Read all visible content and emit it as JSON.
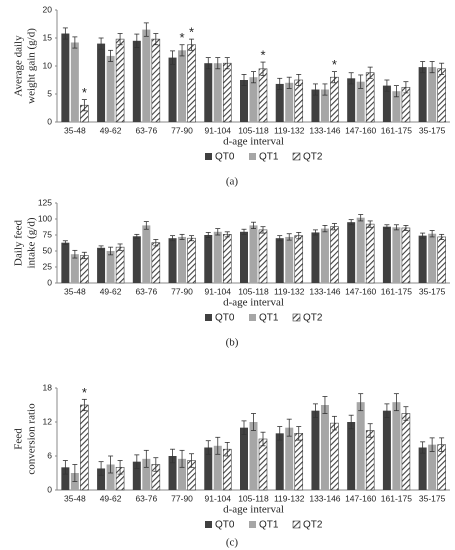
{
  "chart_data": [
    {
      "type": "bar",
      "y_label": [
        "Average daily",
        "weight gain (g/d)"
      ],
      "x_label": "d-age interval",
      "panel_label": "(a)",
      "categories": [
        "35-48",
        "49-62",
        "63-76",
        "77-90",
        "91-104",
        "105-118",
        "119-132",
        "133-146",
        "147-160",
        "161-175",
        "35-175"
      ],
      "ylim": [
        0,
        20
      ],
      "yticks": [
        0,
        5,
        10,
        15,
        20
      ],
      "series": [
        {
          "name": "QT0",
          "color": "#404040",
          "values": [
            15.8,
            14.0,
            14.5,
            11.5,
            10.5,
            7.5,
            6.8,
            5.8,
            7.8,
            6.5,
            9.8
          ],
          "errors": [
            1.0,
            1.0,
            1.2,
            1.2,
            1.0,
            1.0,
            1.0,
            1.0,
            1.0,
            1.0,
            1.0
          ],
          "significance": [
            null,
            null,
            null,
            null,
            null,
            null,
            null,
            null,
            null,
            null,
            null
          ]
        },
        {
          "name": "QT1",
          "color": "#a6a6a6",
          "values": [
            14.2,
            11.8,
            16.5,
            12.8,
            10.5,
            8.0,
            7.0,
            5.8,
            7.2,
            5.5,
            9.8
          ],
          "errors": [
            1.0,
            1.0,
            1.2,
            1.0,
            1.0,
            1.0,
            1.0,
            1.0,
            1.2,
            1.0,
            1.0
          ],
          "significance": [
            null,
            null,
            null,
            "*",
            null,
            null,
            null,
            null,
            null,
            null,
            null
          ]
        },
        {
          "name": "QT2",
          "color": "#404040",
          "pattern": "hatch",
          "values": [
            3.0,
            14.8,
            14.8,
            13.8,
            10.5,
            9.5,
            7.5,
            8.0,
            8.8,
            6.2,
            9.5
          ],
          "errors": [
            1.0,
            1.0,
            1.0,
            1.0,
            1.0,
            1.2,
            1.0,
            1.0,
            1.0,
            1.0,
            1.0
          ],
          "significance": [
            "*",
            null,
            null,
            "*",
            null,
            "*",
            null,
            "*",
            null,
            null,
            null
          ]
        }
      ]
    },
    {
      "type": "bar",
      "y_label": [
        "Daily feed",
        "intake (g/d)"
      ],
      "x_label": "d-age interval",
      "panel_label": "(b)",
      "categories": [
        "35-48",
        "49-62",
        "63-76",
        "77-90",
        "91-104",
        "105-118",
        "119-132",
        "133-146",
        "147-160",
        "161-175",
        "35-175"
      ],
      "ylim": [
        0,
        125
      ],
      "yticks": [
        0,
        25,
        50,
        75,
        100,
        125
      ],
      "series": [
        {
          "name": "QT0",
          "color": "#404040",
          "values": [
            63,
            55,
            73,
            70,
            75,
            80,
            70,
            79,
            95,
            88,
            74
          ],
          "errors": [
            3,
            3,
            3,
            4,
            4,
            4,
            4,
            4,
            4,
            3,
            4
          ],
          "significance": [
            null,
            null,
            null,
            null,
            null,
            null,
            null,
            null,
            null,
            null,
            null
          ]
        },
        {
          "name": "QT1",
          "color": "#a6a6a6",
          "values": [
            45,
            50,
            90,
            72,
            80,
            90,
            72,
            85,
            102,
            87,
            77
          ],
          "errors": [
            6,
            6,
            6,
            4,
            5,
            5,
            5,
            5,
            5,
            4,
            5
          ],
          "significance": [
            null,
            null,
            null,
            null,
            null,
            null,
            null,
            null,
            null,
            null,
            null
          ]
        },
        {
          "name": "QT2",
          "color": "#404040",
          "pattern": "hatch",
          "values": [
            43,
            56,
            63,
            70,
            76,
            83,
            74,
            88,
            92,
            86,
            72
          ],
          "errors": [
            5,
            5,
            5,
            4,
            4,
            5,
            5,
            5,
            5,
            4,
            4
          ],
          "significance": [
            null,
            null,
            null,
            null,
            null,
            null,
            null,
            null,
            null,
            null,
            null
          ]
        }
      ]
    },
    {
      "type": "bar",
      "y_label": [
        "Feed",
        "conversion ratio"
      ],
      "x_label": "d-age interval",
      "panel_label": "(c)",
      "categories": [
        "35-48",
        "49-62",
        "63-76",
        "77-90",
        "91-104",
        "105-118",
        "119-132",
        "133-146",
        "147-160",
        "161-175",
        "35-175"
      ],
      "ylim": [
        0,
        18
      ],
      "yticks": [
        0,
        6,
        12,
        18
      ],
      "series": [
        {
          "name": "QT0",
          "color": "#404040",
          "values": [
            4.0,
            3.8,
            5.0,
            6.0,
            7.5,
            11.0,
            10.0,
            14.0,
            12.0,
            14.0,
            7.5
          ],
          "errors": [
            1.2,
            1.2,
            1.2,
            1.2,
            1.2,
            1.2,
            1.2,
            1.2,
            1.2,
            1.2,
            1.0
          ],
          "significance": [
            null,
            null,
            null,
            null,
            null,
            null,
            null,
            null,
            null,
            null,
            null
          ]
        },
        {
          "name": "QT1",
          "color": "#a6a6a6",
          "values": [
            3.0,
            4.5,
            5.5,
            5.5,
            7.8,
            12.0,
            11.0,
            15.0,
            15.5,
            15.5,
            8.0
          ],
          "errors": [
            1.5,
            1.5,
            1.5,
            1.5,
            1.5,
            1.5,
            1.5,
            1.5,
            1.5,
            1.5,
            1.2
          ],
          "significance": [
            null,
            null,
            null,
            null,
            null,
            null,
            null,
            null,
            null,
            null,
            null
          ]
        },
        {
          "name": "QT2",
          "color": "#404040",
          "pattern": "hatch",
          "values": [
            15.0,
            4.0,
            4.5,
            5.2,
            7.2,
            9.0,
            10.0,
            11.8,
            10.5,
            13.5,
            8.0
          ],
          "errors": [
            1.0,
            1.2,
            1.2,
            1.2,
            1.2,
            1.2,
            1.2,
            1.2,
            1.2,
            1.2,
            1.2
          ],
          "significance": [
            "*",
            null,
            null,
            null,
            null,
            null,
            null,
            null,
            null,
            null,
            null
          ]
        }
      ]
    }
  ]
}
